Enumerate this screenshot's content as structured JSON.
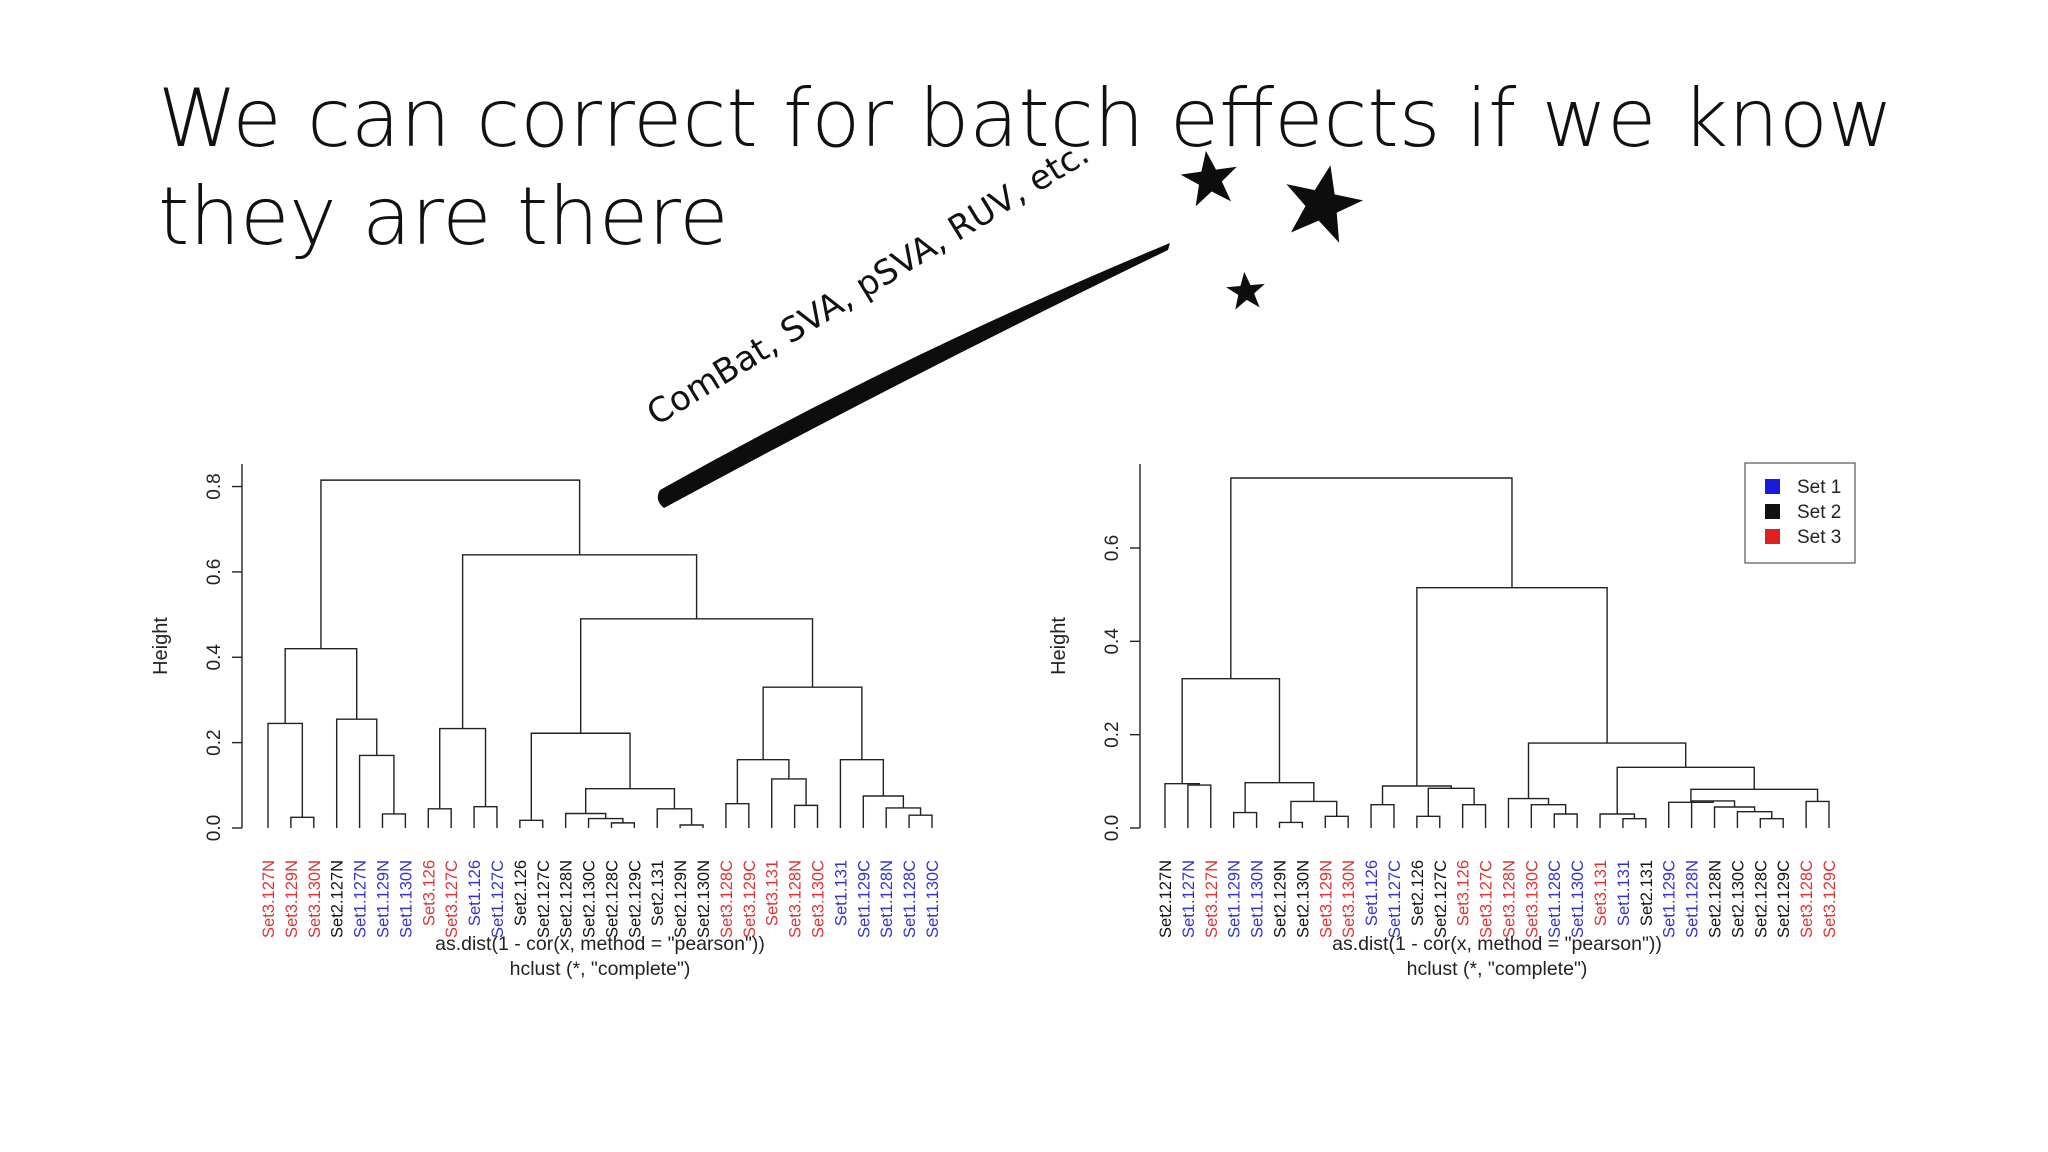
{
  "slide": {
    "title_line1": "We can correct for batch effects if we know",
    "title_line2": "they are there",
    "wand_label": "ComBat, SVA, pSVA, RUV, etc."
  },
  "colors": {
    "set1": "#3333cc",
    "set2": "#111111",
    "set3": "#dd3333",
    "line": "#222222"
  },
  "chart_data": [
    {
      "type": "dendrogram",
      "ylabel": "Height",
      "xlabel": "as.dist(1 - cor(x, method = \"pearson\"))",
      "sub": "hclust (*, \"complete\")",
      "ylim": [
        0,
        0.82
      ],
      "yticks": [
        "0.0",
        "0.2",
        "0.4",
        "0.6",
        "0.8"
      ],
      "yticks_values": [
        0,
        0.2,
        0.4,
        0.6,
        0.8
      ],
      "leaves": [
        {
          "label": "Set3.127N",
          "set": 3
        },
        {
          "label": "Set3.129N",
          "set": 3
        },
        {
          "label": "Set3.130N",
          "set": 3
        },
        {
          "label": "Set2.127N",
          "set": 2
        },
        {
          "label": "Set1.127N",
          "set": 1
        },
        {
          "label": "Set1.129N",
          "set": 1
        },
        {
          "label": "Set1.130N",
          "set": 1
        },
        {
          "label": "Set3.126",
          "set": 3
        },
        {
          "label": "Set3.127C",
          "set": 3
        },
        {
          "label": "Set1.126",
          "set": 1
        },
        {
          "label": "Set1.127C",
          "set": 1
        },
        {
          "label": "Set2.126",
          "set": 2
        },
        {
          "label": "Set2.127C",
          "set": 2
        },
        {
          "label": "Set2.128N",
          "set": 2
        },
        {
          "label": "Set2.130C",
          "set": 2
        },
        {
          "label": "Set2.128C",
          "set": 2
        },
        {
          "label": "Set2.129C",
          "set": 2
        },
        {
          "label": "Set2.131",
          "set": 2
        },
        {
          "label": "Set2.129N",
          "set": 2
        },
        {
          "label": "Set2.130N",
          "set": 2
        },
        {
          "label": "Set3.128C",
          "set": 3
        },
        {
          "label": "Set3.129C",
          "set": 3
        },
        {
          "label": "Set3.131",
          "set": 3
        },
        {
          "label": "Set3.128N",
          "set": 3
        },
        {
          "label": "Set3.130C",
          "set": 3
        },
        {
          "label": "Set1.131",
          "set": 1
        },
        {
          "label": "Set1.129C",
          "set": 1
        },
        {
          "label": "Set1.128N",
          "set": 1
        },
        {
          "label": "Set1.128C",
          "set": 1
        },
        {
          "label": "Set1.130C",
          "set": 1
        }
      ],
      "merges": [
        [
          1,
          2,
          0.025
        ],
        [
          0,
          -1,
          0.245
        ],
        [
          5,
          6,
          0.033
        ],
        [
          4,
          -3,
          0.17
        ],
        [
          3,
          -4,
          0.255
        ],
        [
          -2,
          -5,
          0.42
        ],
        [
          7,
          8,
          0.045
        ],
        [
          9,
          10,
          0.05
        ],
        [
          -7,
          -8,
          0.233
        ],
        [
          11,
          12,
          0.018
        ],
        [
          15,
          16,
          0.012
        ],
        [
          14,
          -11,
          0.022
        ],
        [
          13,
          -12,
          0.034
        ],
        [
          18,
          19,
          0.007
        ],
        [
          17,
          -14,
          0.045
        ],
        [
          -13,
          -15,
          0.092
        ],
        [
          -10,
          -16,
          0.222
        ],
        [
          20,
          21,
          0.057
        ],
        [
          23,
          24,
          0.053
        ],
        [
          22,
          -19,
          0.115
        ],
        [
          -18,
          -20,
          0.16
        ],
        [
          28,
          29,
          0.03
        ],
        [
          27,
          -22,
          0.047
        ],
        [
          26,
          -23,
          0.075
        ],
        [
          25,
          -24,
          0.16
        ],
        [
          -21,
          -25,
          0.33
        ],
        [
          -17,
          -26,
          0.49
        ],
        [
          -9,
          -27,
          0.64
        ],
        [
          -6,
          -28,
          0.815
        ]
      ]
    },
    {
      "type": "dendrogram",
      "ylabel": "Height",
      "xlabel": "as.dist(1 - cor(x, method = \"pearson\"))",
      "sub": "hclust (*, \"complete\")",
      "ylim": [
        0,
        0.75
      ],
      "yticks": [
        "0.0",
        "0.2",
        "0.4",
        "0.6"
      ],
      "yticks_values": [
        0,
        0.2,
        0.4,
        0.6
      ],
      "legend": {
        "position": "top-right",
        "entries": [
          {
            "label": "Set 1",
            "color": "#1a1adb"
          },
          {
            "label": "Set 2",
            "color": "#111111"
          },
          {
            "label": "Set 3",
            "color": "#e02020"
          }
        ]
      },
      "leaves": [
        {
          "label": "Set2.127N",
          "set": 2
        },
        {
          "label": "Set1.127N",
          "set": 1
        },
        {
          "label": "Set3.127N",
          "set": 3
        },
        {
          "label": "Set1.129N",
          "set": 1
        },
        {
          "label": "Set1.130N",
          "set": 1
        },
        {
          "label": "Set2.129N",
          "set": 2
        },
        {
          "label": "Set2.130N",
          "set": 2
        },
        {
          "label": "Set3.129N",
          "set": 3
        },
        {
          "label": "Set3.130N",
          "set": 3
        },
        {
          "label": "Set1.126",
          "set": 1
        },
        {
          "label": "Set1.127C",
          "set": 1
        },
        {
          "label": "Set2.126",
          "set": 2
        },
        {
          "label": "Set2.127C",
          "set": 2
        },
        {
          "label": "Set3.126",
          "set": 3
        },
        {
          "label": "Set3.127C",
          "set": 3
        },
        {
          "label": "Set3.128N",
          "set": 3
        },
        {
          "label": "Set3.130C",
          "set": 3
        },
        {
          "label": "Set1.128C",
          "set": 1
        },
        {
          "label": "Set1.130C",
          "set": 1
        },
        {
          "label": "Set3.131",
          "set": 3
        },
        {
          "label": "Set1.131",
          "set": 1
        },
        {
          "label": "Set2.131",
          "set": 2
        },
        {
          "label": "Set1.129C",
          "set": 1
        },
        {
          "label": "Set1.128N",
          "set": 1
        },
        {
          "label": "Set2.128N",
          "set": 2
        },
        {
          "label": "Set2.130C",
          "set": 2
        },
        {
          "label": "Set2.128C",
          "set": 2
        },
        {
          "label": "Set2.129C",
          "set": 2
        },
        {
          "label": "Set3.128C",
          "set": 3
        },
        {
          "label": "Set3.129C",
          "set": 3
        }
      ],
      "merges": [
        [
          1,
          2,
          0.092
        ],
        [
          0,
          -1,
          0.095
        ],
        [
          3,
          4,
          0.033
        ],
        [
          5,
          6,
          0.012
        ],
        [
          7,
          8,
          0.025
        ],
        [
          -4,
          -5,
          0.057
        ],
        [
          -3,
          -6,
          0.097
        ],
        [
          -2,
          -7,
          0.32
        ],
        [
          9,
          10,
          0.05
        ],
        [
          11,
          12,
          0.025
        ],
        [
          13,
          14,
          0.05
        ],
        [
          -10,
          -11,
          0.085
        ],
        [
          -9,
          -12,
          0.09
        ],
        [
          17,
          18,
          0.03
        ],
        [
          16,
          -14,
          0.05
        ],
        [
          15,
          -15,
          0.063
        ],
        [
          20,
          21,
          0.02
        ],
        [
          19,
          -17,
          0.03
        ],
        [
          26,
          27,
          0.02
        ],
        [
          25,
          -19,
          0.035
        ],
        [
          24,
          -20,
          0.045
        ],
        [
          23,
          -21,
          0.058
        ],
        [
          22,
          -22,
          0.055
        ],
        [
          28,
          29,
          0.057
        ],
        [
          -23,
          -24,
          0.083
        ],
        [
          -18,
          -25,
          0.13
        ],
        [
          -16,
          -26,
          0.182
        ],
        [
          -13,
          -27,
          0.515
        ],
        [
          -8,
          -28,
          0.75
        ]
      ]
    }
  ]
}
